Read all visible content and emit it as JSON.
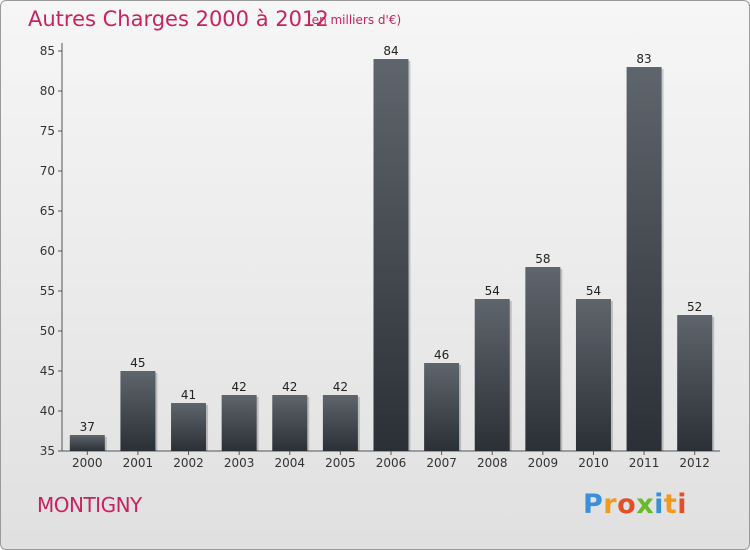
{
  "header": {
    "title": "Autres Charges 2000 à 2012",
    "subtitle": "(en milliers d'€)"
  },
  "footer": {
    "location": "MONTIGNY",
    "logo_text": "Proxiti",
    "logo_letters": [
      {
        "ch": "P",
        "color": "#3a8fd8"
      },
      {
        "ch": "r",
        "color": "#f39a1e"
      },
      {
        "ch": "o",
        "color": "#e2502a"
      },
      {
        "ch": "x",
        "color": "#6ab82c"
      },
      {
        "ch": "i",
        "color": "#3a8fd8"
      },
      {
        "ch": "t",
        "color": "#f39a1e"
      },
      {
        "ch": "i",
        "color": "#e2502a"
      }
    ]
  },
  "colors": {
    "bar_top": "#5f656c",
    "bar_bottom": "#2b3037",
    "accent": "#c8235e"
  },
  "chart_data": {
    "type": "bar",
    "categories": [
      "2000",
      "2001",
      "2002",
      "2003",
      "2004",
      "2005",
      "2006",
      "2007",
      "2008",
      "2009",
      "2010",
      "2011",
      "2012"
    ],
    "values": [
      37,
      45,
      41,
      42,
      42,
      42,
      84,
      46,
      54,
      58,
      54,
      83,
      52
    ],
    "title": "Autres Charges 2000 à 2012",
    "ylim": [
      35,
      85
    ],
    "yticks": [
      35,
      40,
      45,
      50,
      55,
      60,
      65,
      70,
      75,
      80,
      85
    ],
    "grid": false,
    "data_labels": true
  }
}
